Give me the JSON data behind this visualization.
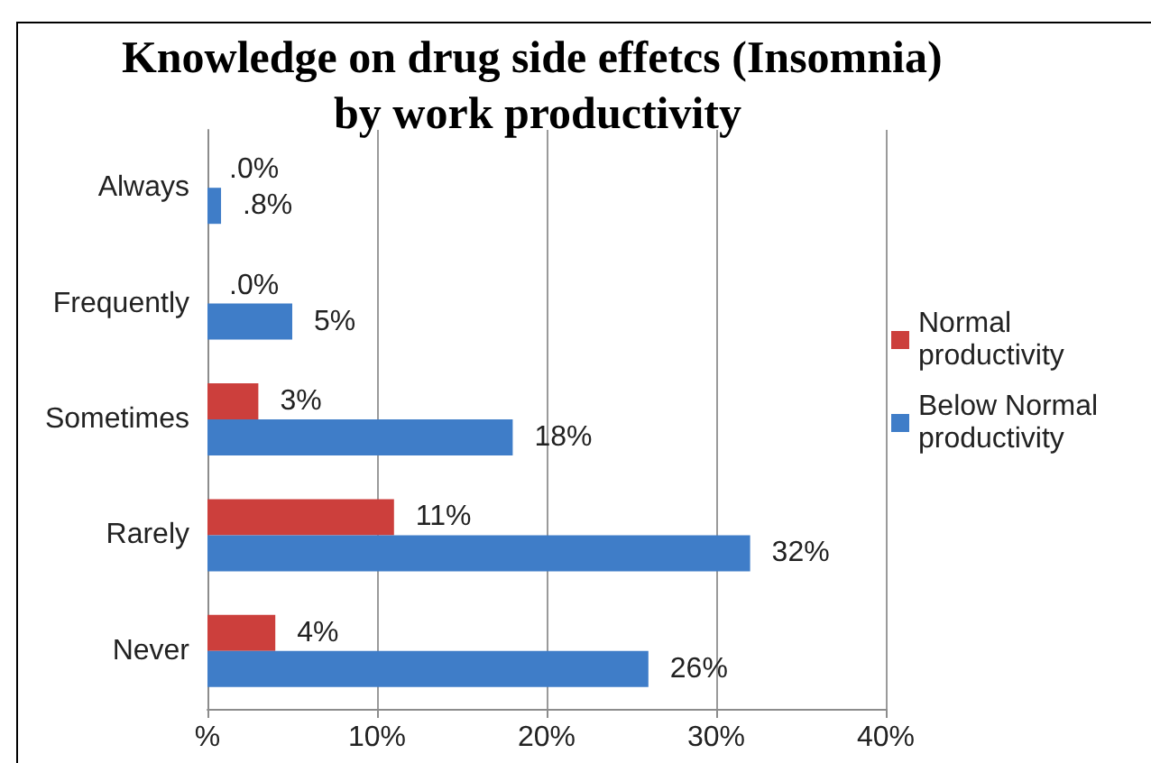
{
  "chart_data": {
    "type": "bar",
    "orientation": "horizontal",
    "title": "Knowledge on drug side effetcs (Insomnia) by work productivity",
    "categories": [
      "Always",
      "Frequently",
      "Sometimes",
      "Rarely",
      "Never"
    ],
    "series": [
      {
        "name": "Normal productivity",
        "color": "#cc3f3c",
        "values": [
          0,
          0,
          3,
          11,
          4
        ],
        "value_labels": [
          ".0%",
          ".0%",
          "3%",
          "11%",
          "4%"
        ]
      },
      {
        "name": "Below Normal productivity",
        "color": "#3f7dc8",
        "values": [
          0.8,
          5,
          18,
          32,
          26
        ],
        "value_labels": [
          ".8%",
          "5%",
          "18%",
          "32%",
          "26%"
        ]
      }
    ],
    "xlim": [
      0,
      40
    ],
    "xticks": [
      {
        "value": 0,
        "label": "%"
      },
      {
        "value": 10,
        "label": "10%"
      },
      {
        "value": 20,
        "label": "20%"
      },
      {
        "value": 30,
        "label": "30%"
      },
      {
        "value": 40,
        "label": "40%"
      }
    ],
    "grid": "x",
    "legend": "right"
  }
}
